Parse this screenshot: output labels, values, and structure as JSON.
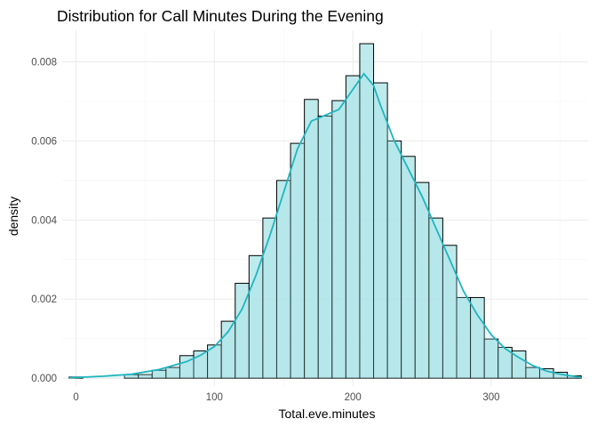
{
  "chart_data": {
    "type": "histogram",
    "title": "Distribution for Call Minutes During the Evening",
    "xlabel": "Total.eve.minutes",
    "ylabel": "density",
    "xlim": [
      -10,
      370
    ],
    "ylim": [
      -0.0002,
      0.0088
    ],
    "x_ticks": [
      0,
      100,
      200,
      300
    ],
    "x_tick_labels": [
      "0",
      "100",
      "200",
      "300"
    ],
    "y_ticks": [
      0,
      0.002,
      0.004,
      0.006,
      0.008
    ],
    "y_tick_labels": [
      "0.000",
      "0.002",
      "0.004",
      "0.006",
      "0.008"
    ],
    "grid": true,
    "bin_width": 10,
    "bins": [
      {
        "x0": -5,
        "x1": 5,
        "density": 3e-05
      },
      {
        "x0": 5,
        "x1": 15,
        "density": 0.0
      },
      {
        "x0": 15,
        "x1": 25,
        "density": 0.0
      },
      {
        "x0": 25,
        "x1": 35,
        "density": 0.0
      },
      {
        "x0": 35,
        "x1": 45,
        "density": 9e-05
      },
      {
        "x0": 45,
        "x1": 55,
        "density": 9e-05
      },
      {
        "x0": 55,
        "x1": 65,
        "density": 0.0002
      },
      {
        "x0": 65,
        "x1": 75,
        "density": 0.00027
      },
      {
        "x0": 75,
        "x1": 85,
        "density": 0.00057
      },
      {
        "x0": 85,
        "x1": 95,
        "density": 0.00069
      },
      {
        "x0": 95,
        "x1": 105,
        "density": 0.00084
      },
      {
        "x0": 105,
        "x1": 115,
        "density": 0.00144
      },
      {
        "x0": 115,
        "x1": 125,
        "density": 0.0024
      },
      {
        "x0": 125,
        "x1": 135,
        "density": 0.0031
      },
      {
        "x0": 135,
        "x1": 145,
        "density": 0.00405
      },
      {
        "x0": 145,
        "x1": 155,
        "density": 0.005
      },
      {
        "x0": 155,
        "x1": 165,
        "density": 0.00594
      },
      {
        "x0": 165,
        "x1": 175,
        "density": 0.00705
      },
      {
        "x0": 175,
        "x1": 185,
        "density": 0.00663
      },
      {
        "x0": 185,
        "x1": 195,
        "density": 0.00702
      },
      {
        "x0": 195,
        "x1": 205,
        "density": 0.00765
      },
      {
        "x0": 205,
        "x1": 215,
        "density": 0.00846
      },
      {
        "x0": 215,
        "x1": 225,
        "density": 0.00747
      },
      {
        "x0": 225,
        "x1": 235,
        "density": 0.006
      },
      {
        "x0": 235,
        "x1": 245,
        "density": 0.00561
      },
      {
        "x0": 245,
        "x1": 255,
        "density": 0.00495
      },
      {
        "x0": 255,
        "x1": 265,
        "density": 0.00405
      },
      {
        "x0": 265,
        "x1": 275,
        "density": 0.00336
      },
      {
        "x0": 275,
        "x1": 285,
        "density": 0.00204
      },
      {
        "x0": 285,
        "x1": 295,
        "density": 0.00204
      },
      {
        "x0": 295,
        "x1": 305,
        "density": 0.00099
      },
      {
        "x0": 305,
        "x1": 315,
        "density": 0.00078
      },
      {
        "x0": 315,
        "x1": 325,
        "density": 0.00069
      },
      {
        "x0": 325,
        "x1": 335,
        "density": 0.00027
      },
      {
        "x0": 335,
        "x1": 345,
        "density": 0.00024
      },
      {
        "x0": 345,
        "x1": 355,
        "density": 0.00015
      },
      {
        "x0": 355,
        "x1": 365,
        "density": 6e-05
      }
    ],
    "density_curve": {
      "x": [
        -5,
        20,
        40,
        60,
        80,
        90,
        100,
        110,
        120,
        130,
        140,
        150,
        160,
        170,
        180,
        190,
        200,
        208,
        215,
        220,
        230,
        240,
        250,
        260,
        270,
        280,
        290,
        300,
        310,
        320,
        330,
        340,
        350,
        365
      ],
      "y": [
        1e-05,
        5e-05,
        0.0001,
        0.00022,
        0.00042,
        0.00058,
        0.0008,
        0.00118,
        0.00175,
        0.0026,
        0.0036,
        0.0047,
        0.0058,
        0.0065,
        0.00665,
        0.0068,
        0.0073,
        0.0077,
        0.0074,
        0.0069,
        0.006,
        0.0053,
        0.0046,
        0.0038,
        0.003,
        0.0022,
        0.0016,
        0.0011,
        0.00075,
        0.00052,
        0.00032,
        0.00018,
        0.0001,
        2e-05
      ]
    },
    "colors": {
      "bar_fill": "#b3e6e9",
      "bar_fill_opacity": 0.85,
      "bar_stroke": "#000000",
      "density_line": "#1fb5c0",
      "density_fill": "#9fdfe3"
    }
  }
}
